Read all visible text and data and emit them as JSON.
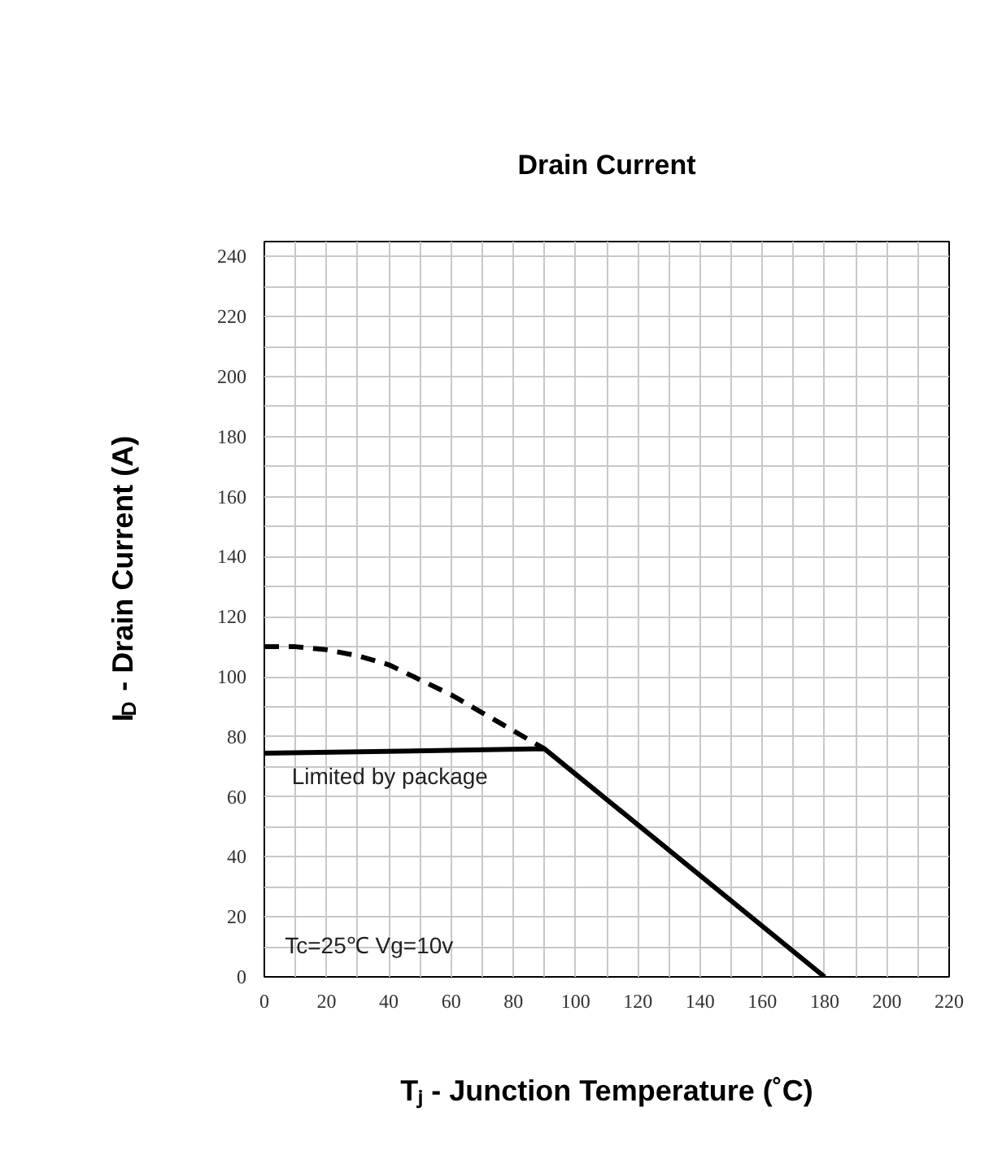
{
  "chart_data": {
    "type": "line",
    "title": "Drain Current",
    "xlabel": "Tⱼ - Junction Temperature (˚C)",
    "ylabel": "I$_{D}$ - Drain Current (A)",
    "xlim": [
      0,
      220
    ],
    "ylim": [
      0,
      245
    ],
    "xticks": [
      0,
      20,
      40,
      60,
      80,
      100,
      120,
      140,
      160,
      180,
      200,
      220
    ],
    "yticks": [
      0,
      20,
      40,
      60,
      80,
      100,
      120,
      140,
      160,
      180,
      200,
      220,
      240
    ],
    "grid": true,
    "marker": "none",
    "series": [
      {
        "color": "#000000",
        "line_style": "dashed",
        "x": [
          0,
          10,
          20,
          30,
          40,
          50,
          60,
          70,
          80,
          90
        ],
        "values": [
          110,
          110,
          109,
          107,
          104,
          99,
          94,
          88,
          82,
          76
        ]
      },
      {
        "color": "#000000",
        "line_style": "solid",
        "x": [
          0,
          90,
          180
        ],
        "values": [
          74.5,
          76,
          0
        ]
      }
    ],
    "annotations": [
      "Limited by package",
      "Tc=25℃ Vg=10v"
    ]
  }
}
